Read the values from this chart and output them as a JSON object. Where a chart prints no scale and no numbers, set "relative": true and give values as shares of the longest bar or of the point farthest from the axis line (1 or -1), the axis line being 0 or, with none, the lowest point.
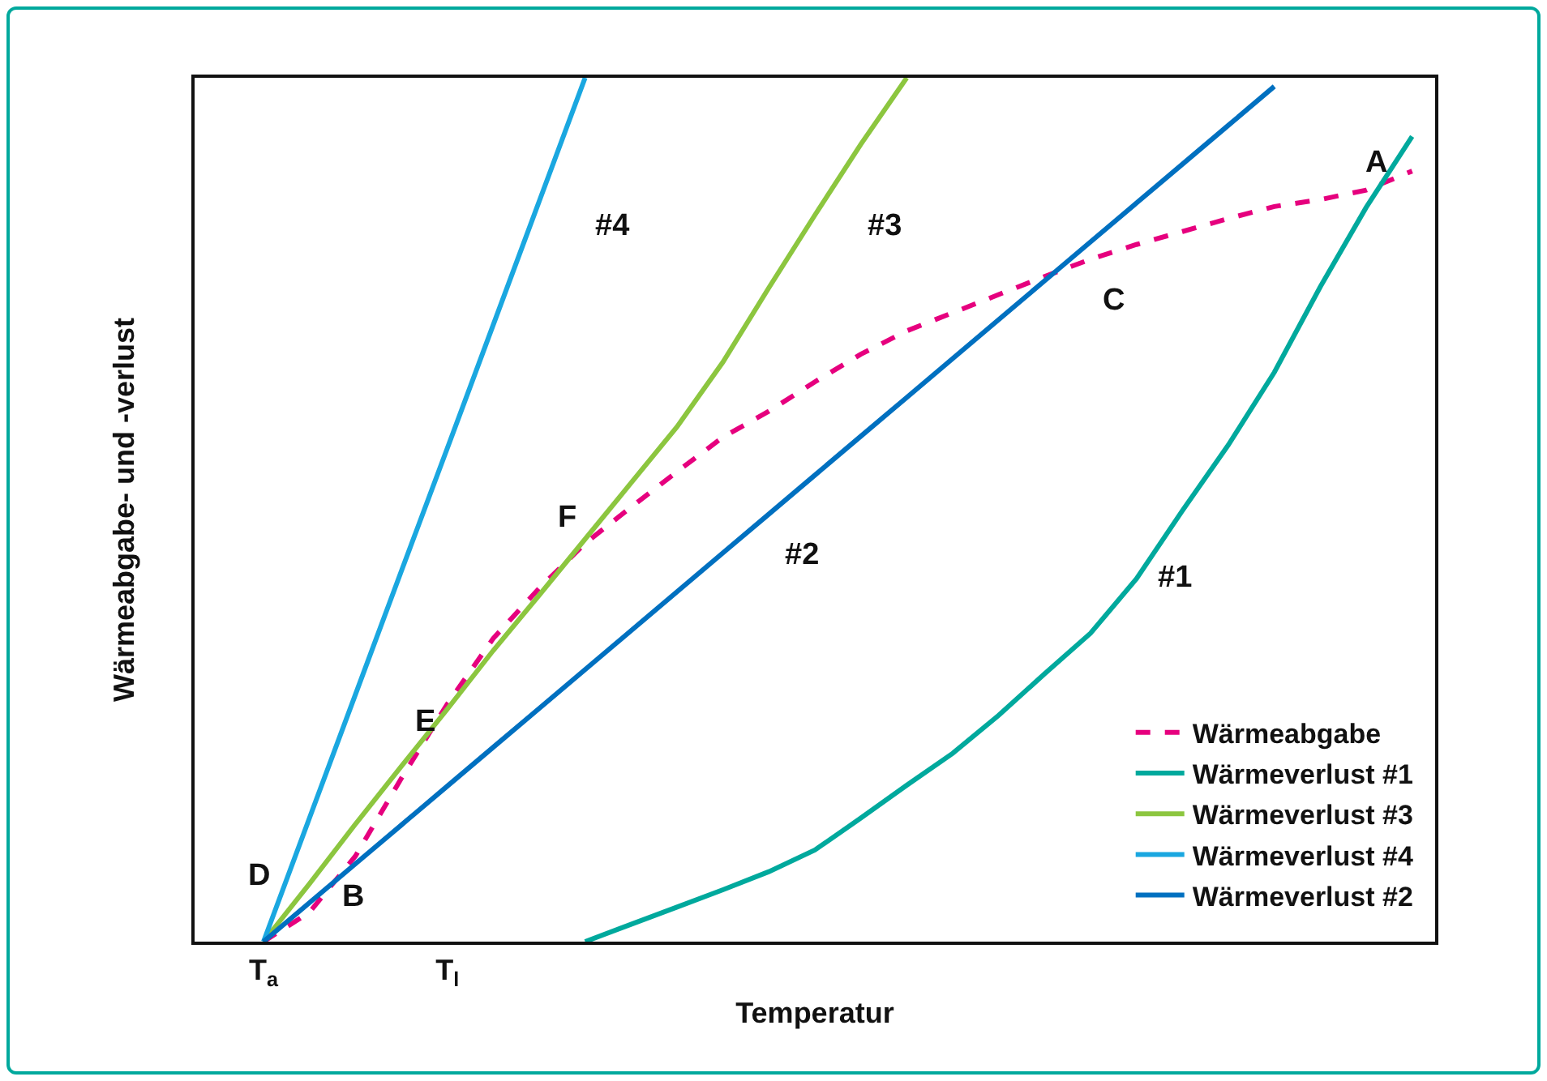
{
  "chart_data": {
    "type": "line",
    "relative": true,
    "xlabel": "Temperatur",
    "ylabel": "Wärmeabgabe- und -verlust",
    "categories": [
      null,
      "T$_{a}$",
      null,
      null,
      null,
      "T$_{l}$",
      null,
      null,
      null,
      null,
      null,
      null,
      null,
      null,
      null,
      null,
      null,
      null,
      null,
      null,
      null,
      null,
      null,
      null,
      null,
      null,
      null
    ],
    "grid": false,
    "legend": "bottom right",
    "marker": "none",
    "series": [
      {
        "name": "Wärmeabgabe",
        "color": "#e6007e",
        "line_style": "dashed",
        "values": [
          null,
          0,
          0.034,
          0.099,
          0.189,
          0.275,
          0.351,
          0.409,
          0.461,
          0.503,
          0.544,
          0.584,
          0.614,
          0.648,
          0.68,
          0.707,
          0.728,
          0.749,
          0.77,
          0.79,
          0.807,
          0.822,
          0.837,
          0.851,
          0.859,
          0.87,
          0.892
        ]
      },
      {
        "name": "Wärmeverlust #1",
        "color": "#00a99d",
        "line_style": "solid",
        "values": [
          null,
          null,
          null,
          null,
          null,
          null,
          null,
          null,
          0,
          0.02,
          0.04,
          0.06,
          0.081,
          0.106,
          0.143,
          0.181,
          0.218,
          0.262,
          0.31,
          0.357,
          0.42,
          0.499,
          0.575,
          0.659,
          0.758,
          0.85,
          0.932
        ]
      },
      {
        "name": "Wärmeverlust #3",
        "color": "#8cc63f",
        "line_style": "solid",
        "values": [
          null,
          0,
          0.067,
          0.136,
          0.203,
          0.269,
          0.337,
          0.401,
          0.466,
          0.531,
          0.596,
          0.671,
          0.757,
          0.841,
          0.923,
          1,
          null,
          null,
          null,
          null,
          null,
          null,
          null,
          null,
          null,
          null,
          null
        ]
      },
      {
        "name": "Wärmeverlust #4",
        "color": "#1aa7e0",
        "line_style": "solid",
        "values": [
          null,
          0,
          0.143,
          0.286,
          0.429,
          0.571,
          0.714,
          0.857,
          1,
          null,
          null,
          null,
          null,
          null,
          null,
          null,
          null,
          null,
          null,
          null,
          null,
          null,
          null,
          null,
          null,
          null,
          null
        ]
      },
      {
        "name": "Wärmeverlust #2",
        "color": "#0070c0",
        "line_style": "solid",
        "values": [
          null,
          0,
          0.045,
          0.09,
          0.135,
          0.18,
          0.225,
          0.27,
          0.315,
          0.36,
          0.405,
          0.45,
          0.495,
          0.54,
          0.585,
          0.63,
          0.675,
          0.72,
          0.765,
          0.81,
          0.855,
          0.9,
          0.945,
          0.99,
          null,
          null,
          null
        ]
      }
    ],
    "annotations": [
      "#4",
      "#3",
      "#2",
      "#1",
      "A",
      "C",
      "F",
      "E",
      "D",
      "B"
    ]
  }
}
